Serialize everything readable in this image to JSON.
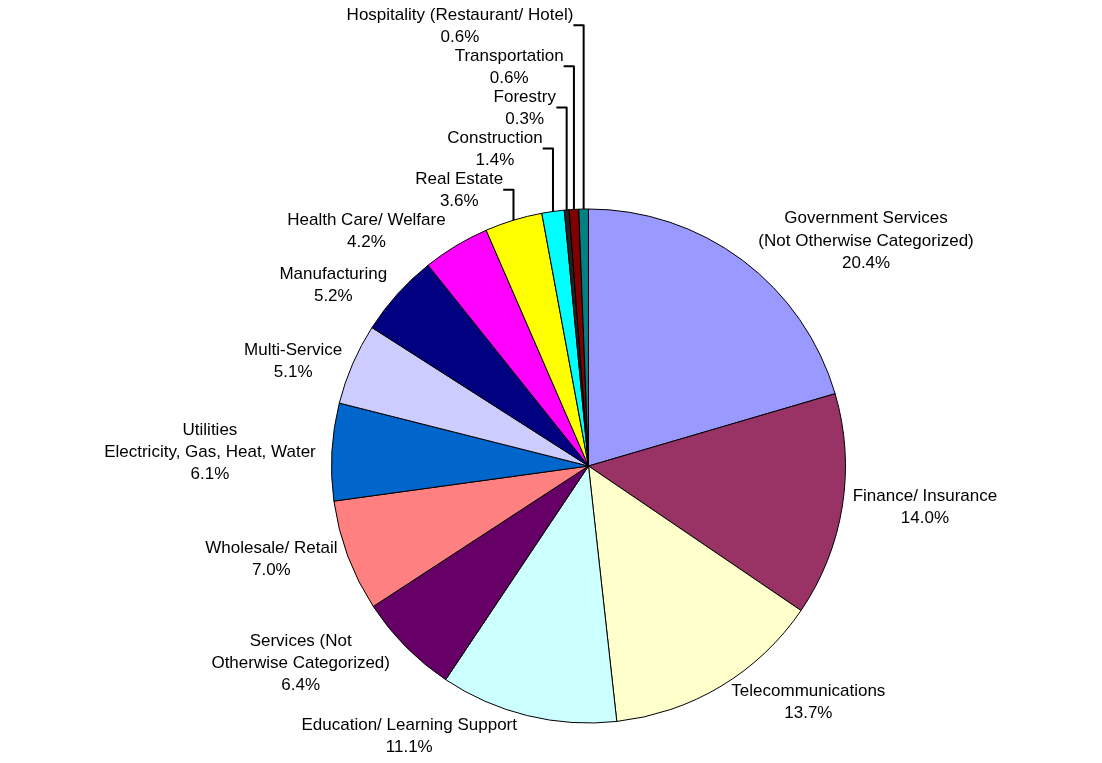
{
  "chart_data": {
    "type": "pie",
    "categories": [
      "Government Services\n(Not Otherwise Categorized)",
      "Finance/ Insurance",
      "Telecommunications",
      "Education/ Learning Support",
      "Services (Not\nOtherwise Categorized)",
      "Wholesale/ Retail",
      "Utilities\nElectricity, Gas, Heat, Water",
      "Multi-Service",
      "Manufacturing",
      "Health Care/ Welfare",
      "Real Estate",
      "Construction",
      "Forestry",
      "Transportation",
      "Hospitality (Restaurant/ Hotel)"
    ],
    "values": [
      20.4,
      14.0,
      13.7,
      11.1,
      6.4,
      7.0,
      6.1,
      5.1,
      5.2,
      4.2,
      3.6,
      1.4,
      0.3,
      0.6,
      0.6
    ],
    "value_labels": [
      "20.4%",
      "14.0%",
      "13.7%",
      "11.1%",
      "6.4%",
      "7.0%",
      "6.1%",
      "5.1%",
      "5.2%",
      "4.2%",
      "3.6%",
      "1.4%",
      "0.3%",
      "0.6%",
      "0.6%"
    ],
    "colors": [
      "#9999ff",
      "#993366",
      "#ffffcc",
      "#ccffff",
      "#660066",
      "#ff8080",
      "#0066cc",
      "#ccccff",
      "#000080",
      "#ff00ff",
      "#ffff00",
      "#00ffff",
      "#222222",
      "#800000",
      "#008080"
    ],
    "legend": false
  }
}
